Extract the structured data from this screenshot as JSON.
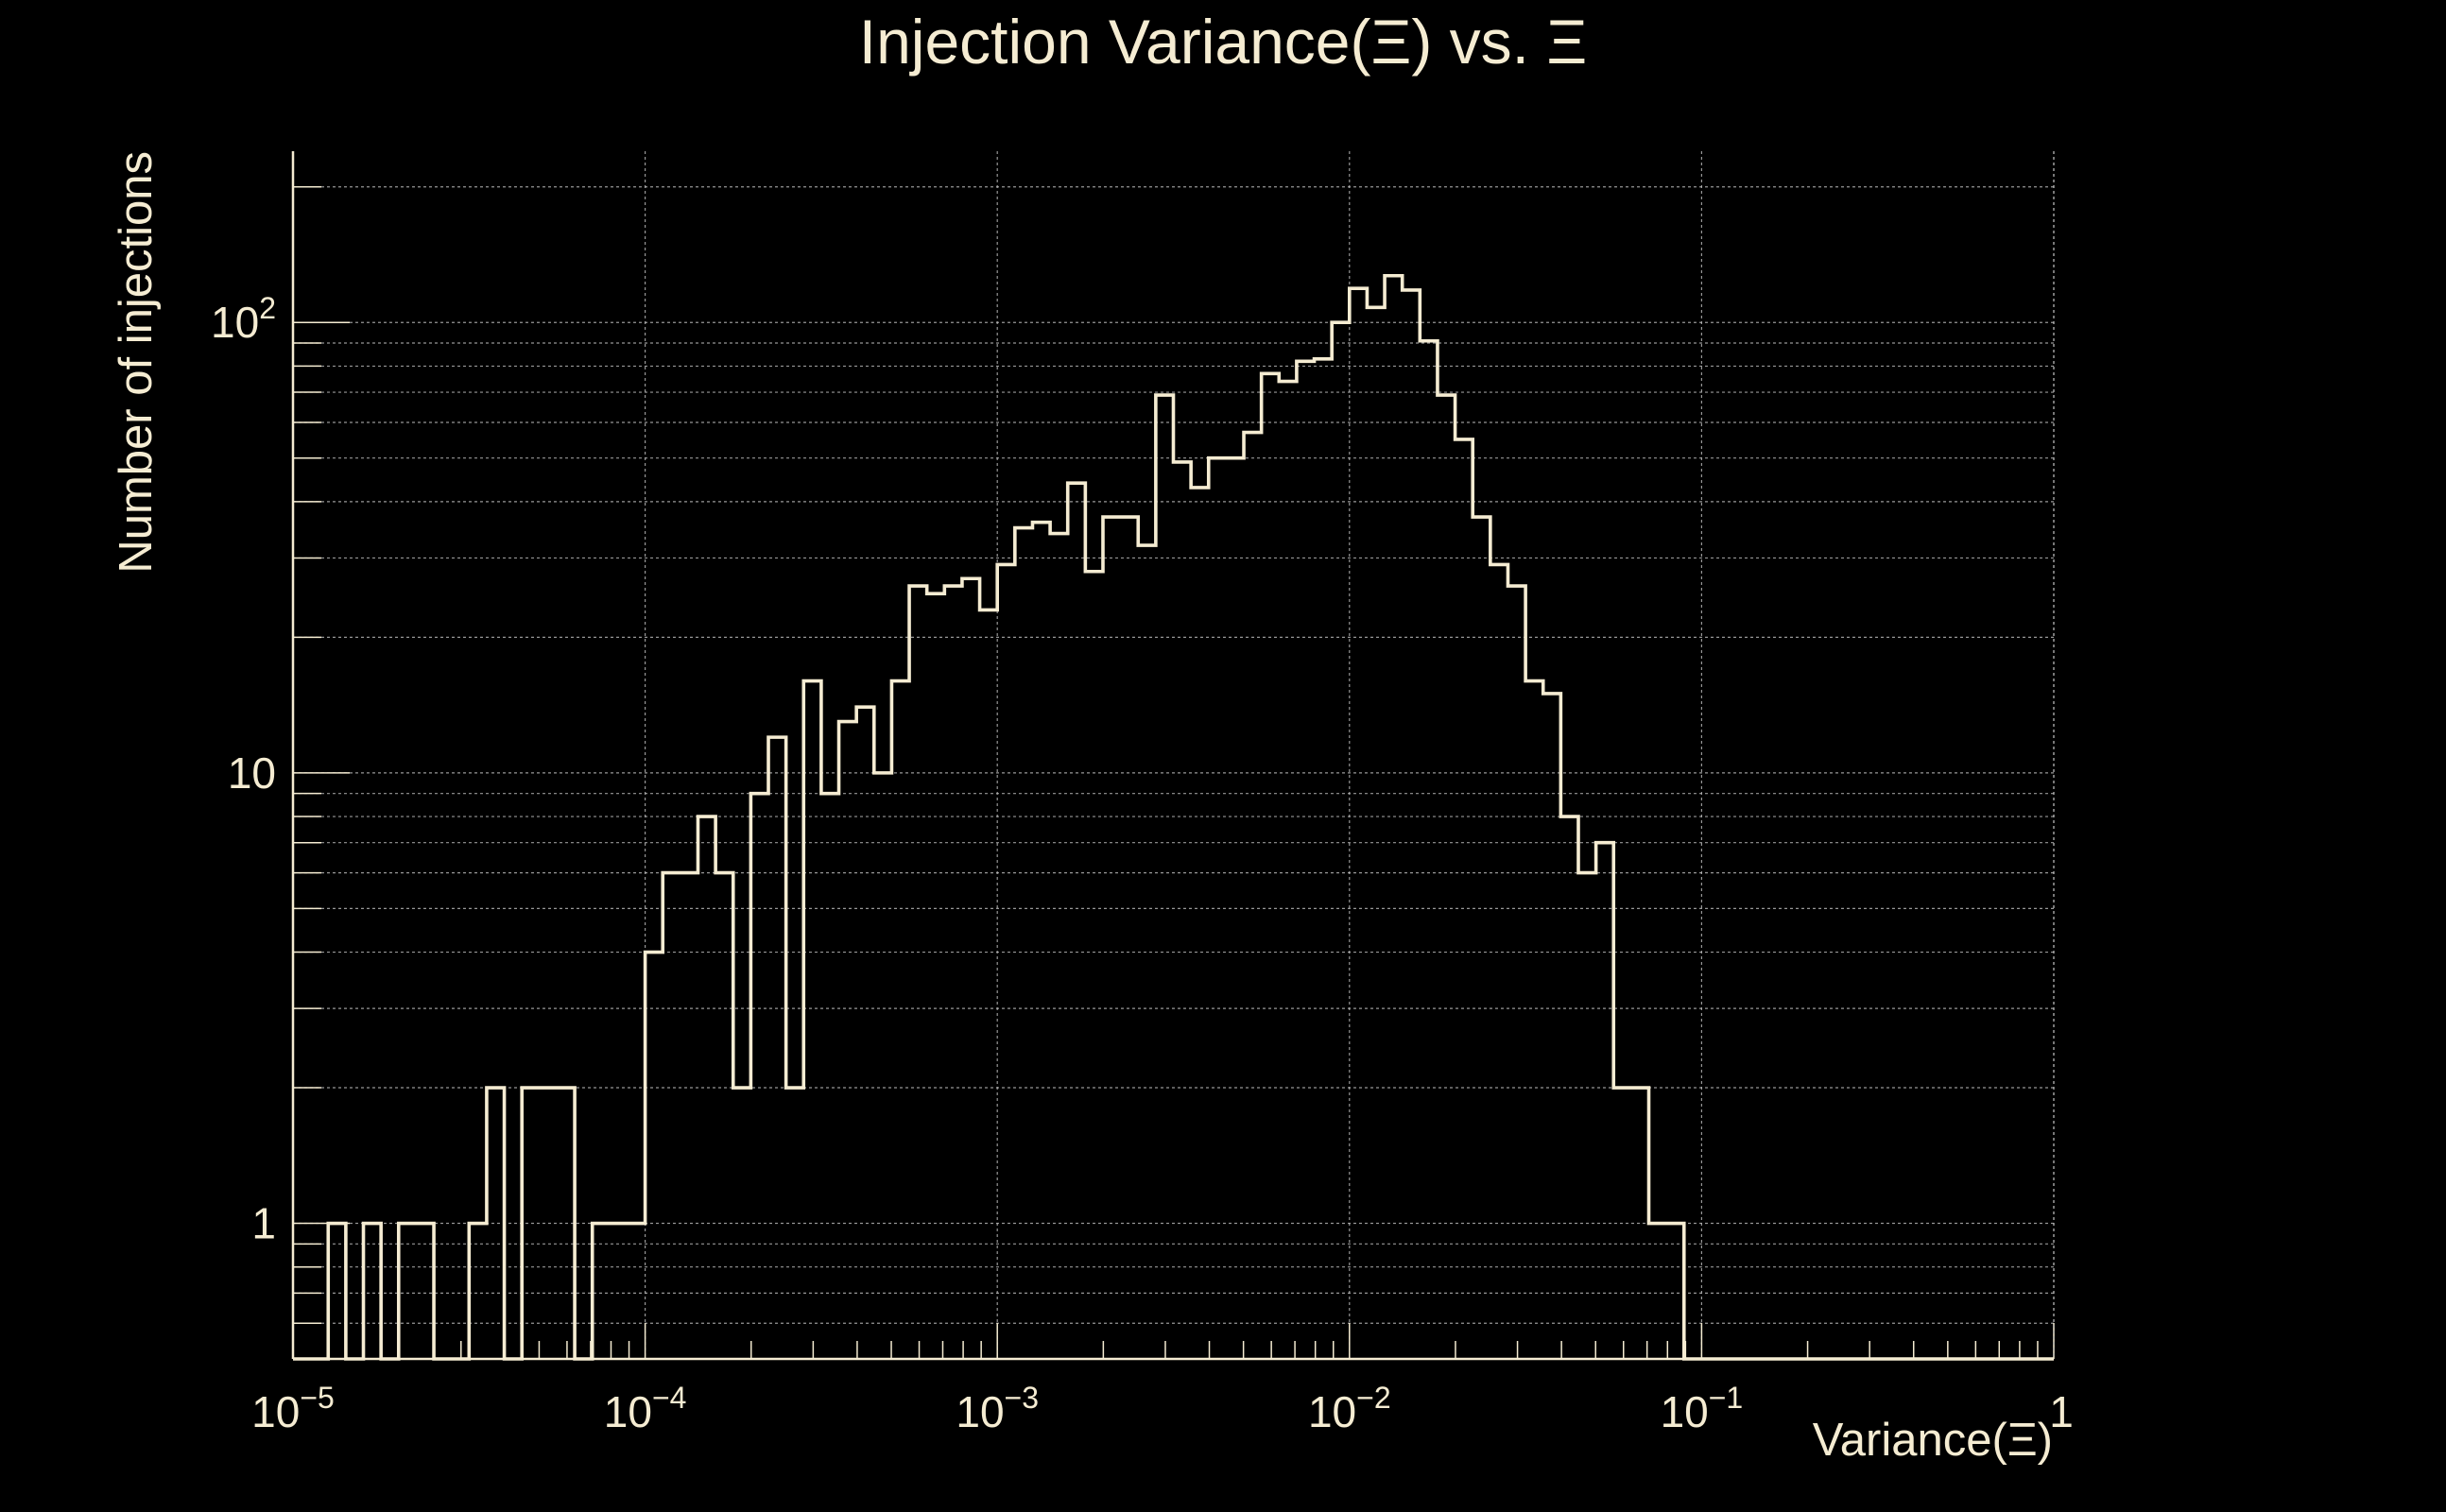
{
  "chart_data": {
    "type": "histogram",
    "title": "Injection Variance(Ξ) vs. Ξ",
    "xlabel": "Variance(Ξ)",
    "ylabel": "Number of injections",
    "x_scale": "log",
    "y_scale": "log",
    "xlim": [
      1e-05,
      1
    ],
    "ylim": [
      0.5,
      240
    ],
    "grid": true,
    "x_ticks": [
      {
        "value": 1e-05,
        "base": "10",
        "exp": "−5"
      },
      {
        "value": 0.0001,
        "base": "10",
        "exp": "−4"
      },
      {
        "value": 0.001,
        "base": "10",
        "exp": "−3"
      },
      {
        "value": 0.01,
        "base": "10",
        "exp": "−2"
      },
      {
        "value": 0.1,
        "base": "10",
        "exp": "−1"
      },
      {
        "value": 1,
        "base": "1",
        "exp": ""
      }
    ],
    "y_ticks": [
      {
        "value": 1,
        "base": "1",
        "exp": ""
      },
      {
        "value": 10,
        "base": "10",
        "exp": ""
      },
      {
        "value": 100,
        "base": "10",
        "exp": "2"
      }
    ],
    "bins_per_decade": 20,
    "bin_start": 1e-05,
    "counts": [
      0,
      0,
      1,
      0,
      1,
      0,
      1,
      1,
      0,
      0,
      1,
      2,
      0,
      2,
      2,
      2,
      0,
      1,
      1,
      1,
      4,
      6,
      6,
      8,
      6,
      2,
      9,
      12,
      2,
      16,
      9,
      13,
      14,
      10,
      16,
      26,
      25,
      26,
      27,
      23,
      29,
      35,
      36,
      34,
      44,
      28,
      37,
      37,
      32,
      69,
      49,
      43,
      50,
      50,
      57,
      77,
      74,
      82,
      83,
      100,
      119,
      108,
      127,
      118,
      91,
      69,
      55,
      37,
      29,
      26,
      16,
      15,
      8,
      6,
      7,
      2,
      2,
      1,
      1,
      0,
      0,
      0,
      0,
      0,
      0,
      0,
      0,
      0,
      0,
      0,
      0,
      0,
      0,
      0,
      0,
      0,
      0,
      0,
      0,
      0
    ],
    "line_color": "#f5ecd2",
    "grid_color": "#bdbdbd",
    "background": "#000000"
  }
}
